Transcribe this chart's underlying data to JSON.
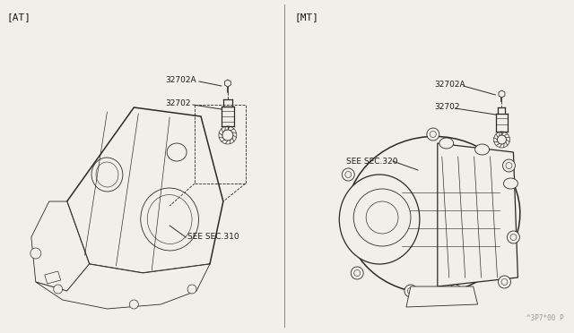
{
  "background_color": "#f0efea",
  "line_color": "#2a2a2a",
  "text_color": "#1a1a1a",
  "left_label": "[AT]",
  "right_label": "[MT]",
  "watermark": "^3P7*00 P",
  "at_section_ref": "SEE SEC.310",
  "mt_section_ref": "SEE SEC.320",
  "pinion_label": "32702",
  "bolt_label": "32702A",
  "fig_width": 6.4,
  "fig_height": 3.72,
  "dpi": 100
}
